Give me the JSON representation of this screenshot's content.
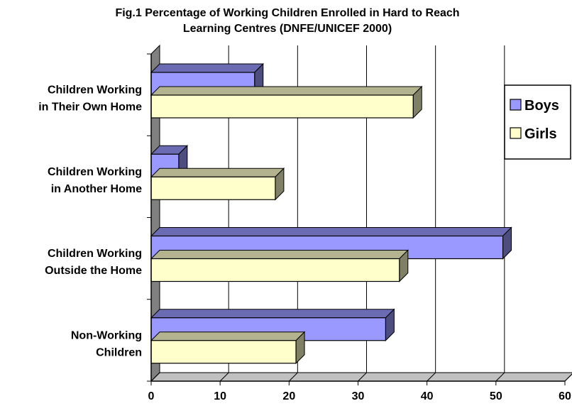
{
  "chart_data": {
    "type": "bar",
    "orientation": "horizontal",
    "title_lines": [
      "Fig.1 Percentage of Working Children Enrolled in Hard to Reach",
      "Learning Centres (DNFE/UNICEF 2000)"
    ],
    "categories": [
      [
        "Children Working",
        "in Their Own Home"
      ],
      [
        "Children Working",
        "in Another Home"
      ],
      [
        "Children Working",
        "Outside the Home"
      ],
      [
        "Non-Working",
        "Children"
      ]
    ],
    "series": [
      {
        "name": "Boys",
        "values": [
          15,
          4,
          51,
          34
        ],
        "color": "#9999ff"
      },
      {
        "name": "Girls",
        "values": [
          38,
          18,
          36,
          21
        ],
        "color": "#ffffcc"
      }
    ],
    "xlim": [
      0,
      60
    ],
    "xticks": [
      "0",
      "10",
      "20",
      "30",
      "40",
      "50",
      "60"
    ],
    "grid": true,
    "three_d": true,
    "legend_position": "right"
  }
}
